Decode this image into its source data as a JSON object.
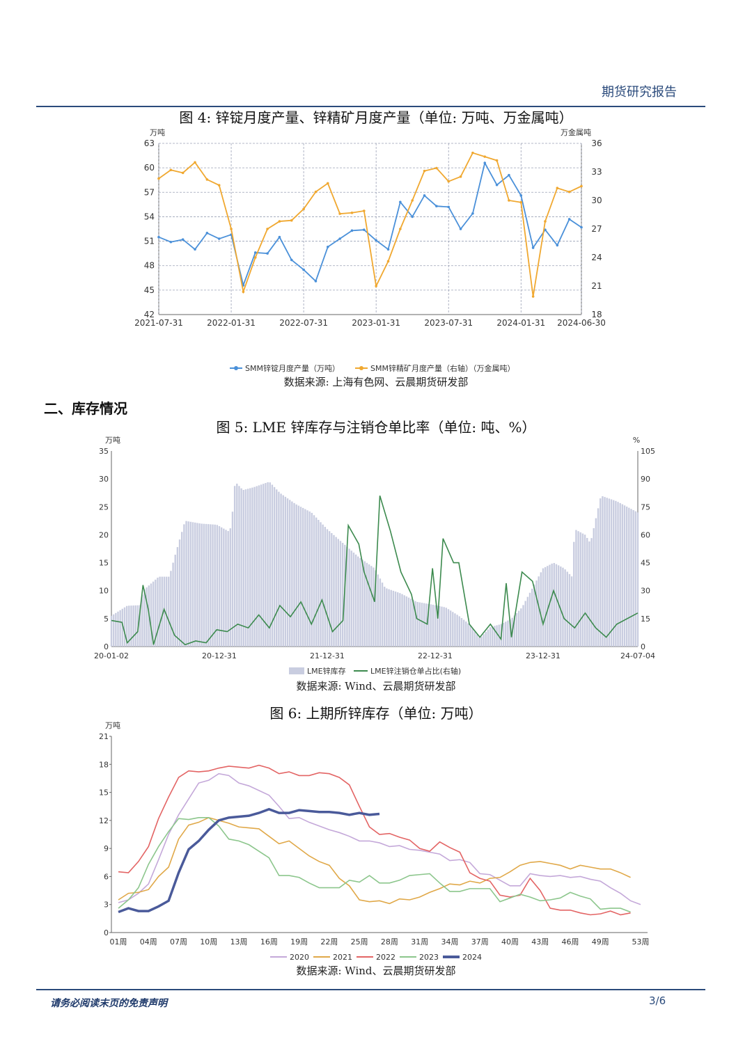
{
  "header": {
    "title": "期货研究报告"
  },
  "section": {
    "heading": "二、库存情况"
  },
  "footer": {
    "disclaimer": "请务必阅读末页的免责声明",
    "page": "3/6"
  },
  "figures": [
    {
      "title": "图 4:  锌锭月度产量、锌精矿月度产量（单位:  万吨、万金属吨）",
      "source": "数据来源:  上海有色网、云晨期货研发部"
    },
    {
      "title": "图 5:  LME 锌库存与注销仓单比率（单位:  吨、%）",
      "source": "数据来源:  Wind、云晨期货研发部"
    },
    {
      "title": "图 6:  上期所锌库存（单位:  万吨）",
      "source": "数据来源:  Wind、云晨期货研发部"
    }
  ],
  "chart_data": [
    {
      "type": "line",
      "left_unit": "万吨",
      "right_unit": "万金属吨",
      "x_ticks": [
        "2021-07-31",
        "2022-01-31",
        "2022-07-31",
        "2023-01-31",
        "2023-07-31",
        "2024-01-31",
        "2024-06-30"
      ],
      "x": [
        "2021-07",
        "2021-08",
        "2021-09",
        "2021-10",
        "2021-11",
        "2021-12",
        "2022-01",
        "2022-02",
        "2022-03",
        "2022-04",
        "2022-05",
        "2022-06",
        "2022-07",
        "2022-08",
        "2022-09",
        "2022-10",
        "2022-11",
        "2022-12",
        "2023-01",
        "2023-02",
        "2023-03",
        "2023-04",
        "2023-05",
        "2023-06",
        "2023-07",
        "2023-08",
        "2023-09",
        "2023-10",
        "2023-11",
        "2023-12",
        "2024-01",
        "2024-02",
        "2024-03",
        "2024-04",
        "2024-05",
        "2024-06"
      ],
      "ylim_left": [
        42,
        63
      ],
      "yticks_left": [
        42,
        45,
        48,
        51,
        54,
        57,
        60,
        63
      ],
      "ylim_right": [
        18,
        36
      ],
      "yticks_right": [
        18,
        21,
        24,
        27,
        30,
        33,
        36
      ],
      "grid": true,
      "legend": "bottom",
      "series": [
        {
          "name": "SMM锌锭月度产量（万吨）",
          "axis": "left",
          "color": "#4a90d9",
          "values": [
            51.5,
            50.9,
            51.2,
            50.0,
            52.0,
            51.3,
            51.8,
            45.6,
            49.6,
            49.5,
            51.5,
            48.7,
            47.5,
            46.1,
            50.3,
            51.3,
            52.3,
            52.4,
            51.1,
            50.0,
            55.8,
            54.0,
            56.6,
            55.3,
            55.2,
            52.5,
            54.4,
            60.6,
            57.9,
            59.1,
            56.6,
            50.2,
            52.4,
            50.5,
            53.7,
            52.7
          ]
        },
        {
          "name": "SMM锌精矿月度产量（右轴）（万金属吨）",
          "axis": "right",
          "color": "#f0a830",
          "values": [
            32.3,
            33.2,
            32.9,
            34.0,
            32.2,
            31.6,
            27.0,
            20.4,
            24.0,
            27.0,
            27.8,
            27.9,
            29.1,
            30.9,
            31.8,
            28.6,
            28.7,
            28.9,
            21.0,
            23.6,
            27.0,
            30.0,
            33.1,
            33.4,
            32.0,
            32.5,
            35.0,
            34.6,
            34.2,
            30.0,
            29.8,
            19.9,
            27.8,
            31.3,
            30.9,
            31.5
          ]
        }
      ]
    },
    {
      "type": "bar+line",
      "left_unit": "万吨",
      "right_unit": "%",
      "x_ticks": [
        "20-01-02",
        "20-12-31",
        "21-12-31",
        "22-12-31",
        "23-12-31",
        "24-07-04"
      ],
      "ylim_left": [
        0,
        35
      ],
      "yticks_left": [
        0,
        5,
        10,
        15,
        20,
        25,
        30,
        35
      ],
      "ylim_right": [
        0,
        105
      ],
      "yticks_right": [
        0,
        15,
        30,
        45,
        60,
        75,
        90,
        105
      ],
      "legend": "bottom",
      "series": [
        {
          "name": "LME锌库存",
          "axis": "left",
          "color": "#c9cde0",
          "points": [
            [
              0,
              5.5
            ],
            [
              0.03,
              7.3
            ],
            [
              0.055,
              7.4
            ],
            [
              0.06,
              10.0
            ],
            [
              0.09,
              12.5
            ],
            [
              0.11,
              12.5
            ],
            [
              0.12,
              16.0
            ],
            [
              0.14,
              22.5
            ],
            [
              0.17,
              22.0
            ],
            [
              0.2,
              21.8
            ],
            [
              0.225,
              20.5
            ],
            [
              0.23,
              24.0
            ],
            [
              0.235,
              29.5
            ],
            [
              0.25,
              28.0
            ],
            [
              0.27,
              28.5
            ],
            [
              0.3,
              29.5
            ],
            [
              0.32,
              27.5
            ],
            [
              0.35,
              25.5
            ],
            [
              0.38,
              24.0
            ],
            [
              0.41,
              21.0
            ],
            [
              0.44,
              18.5
            ],
            [
              0.47,
              16.0
            ],
            [
              0.5,
              14.0
            ],
            [
              0.52,
              10.5
            ],
            [
              0.55,
              9.5
            ],
            [
              0.58,
              8.0
            ],
            [
              0.61,
              7.5
            ],
            [
              0.635,
              7.0
            ],
            [
              0.66,
              5.5
            ],
            [
              0.68,
              4.0
            ],
            [
              0.7,
              1.5
            ],
            [
              0.72,
              3.5
            ],
            [
              0.74,
              4.0
            ],
            [
              0.76,
              5.0
            ],
            [
              0.78,
              7.0
            ],
            [
              0.8,
              10.5
            ],
            [
              0.82,
              14.0
            ],
            [
              0.84,
              15.0
            ],
            [
              0.86,
              14.0
            ],
            [
              0.875,
              12.5
            ],
            [
              0.88,
              21.0
            ],
            [
              0.9,
              20.0
            ],
            [
              0.91,
              18.5
            ],
            [
              0.93,
              27.0
            ],
            [
              0.96,
              26.0
            ],
            [
              1.0,
              24.0
            ]
          ]
        },
        {
          "name": "LME锌注销仓单占比(右轴)",
          "axis": "right",
          "color": "#3c8a4e",
          "points": [
            [
              0,
              14
            ],
            [
              0.02,
              13
            ],
            [
              0.03,
              2
            ],
            [
              0.05,
              8
            ],
            [
              0.06,
              33
            ],
            [
              0.07,
              20
            ],
            [
              0.08,
              1
            ],
            [
              0.1,
              20
            ],
            [
              0.12,
              6
            ],
            [
              0.14,
              1
            ],
            [
              0.16,
              3
            ],
            [
              0.18,
              2
            ],
            [
              0.2,
              9
            ],
            [
              0.22,
              8
            ],
            [
              0.24,
              12
            ],
            [
              0.26,
              10
            ],
            [
              0.28,
              17
            ],
            [
              0.3,
              10
            ],
            [
              0.32,
              22
            ],
            [
              0.34,
              16
            ],
            [
              0.36,
              24
            ],
            [
              0.38,
              12
            ],
            [
              0.4,
              25
            ],
            [
              0.42,
              8
            ],
            [
              0.44,
              14
            ],
            [
              0.45,
              65
            ],
            [
              0.47,
              55
            ],
            [
              0.48,
              40
            ],
            [
              0.5,
              24
            ],
            [
              0.51,
              81
            ],
            [
              0.53,
              62
            ],
            [
              0.55,
              40
            ],
            [
              0.57,
              28
            ],
            [
              0.58,
              15
            ],
            [
              0.6,
              12
            ],
            [
              0.61,
              42
            ],
            [
              0.62,
              15
            ],
            [
              0.63,
              58
            ],
            [
              0.65,
              45
            ],
            [
              0.66,
              45
            ],
            [
              0.68,
              12
            ],
            [
              0.7,
              5
            ],
            [
              0.72,
              12
            ],
            [
              0.74,
              4
            ],
            [
              0.75,
              34
            ],
            [
              0.76,
              5
            ],
            [
              0.78,
              40
            ],
            [
              0.8,
              35
            ],
            [
              0.82,
              12
            ],
            [
              0.84,
              30
            ],
            [
              0.86,
              15
            ],
            [
              0.88,
              10
            ],
            [
              0.9,
              18
            ],
            [
              0.92,
              10
            ],
            [
              0.94,
              5
            ],
            [
              0.96,
              12
            ],
            [
              1.0,
              18
            ]
          ]
        }
      ]
    },
    {
      "type": "line",
      "unit": "万吨",
      "x_ticks": [
        "01周",
        "04周",
        "07周",
        "10周",
        "13周",
        "16周",
        "19周",
        "22周",
        "25周",
        "28周",
        "31周",
        "34周",
        "37周",
        "40周",
        "43周",
        "46周",
        "49周",
        "53周"
      ],
      "ylim": [
        0,
        21
      ],
      "yticks": [
        0,
        3,
        6,
        9,
        12,
        15,
        18,
        21
      ],
      "legend": "bottom",
      "series": [
        {
          "name": "2020",
          "color": "#c4a8d9",
          "values": [
            3.2,
            3.5,
            4.2,
            5.2,
            7.8,
            10.5,
            12.6,
            14.3,
            16.0,
            16.3,
            17.0,
            16.8,
            16.0,
            15.7,
            15.2,
            14.7,
            13.5,
            12.2,
            12.3,
            11.8,
            11.4,
            11.0,
            10.7,
            10.3,
            9.8,
            9.8,
            9.6,
            9.2,
            9.3,
            8.9,
            8.8,
            8.6,
            8.4,
            7.7,
            7.8,
            7.5,
            6.3,
            6.2,
            5.6,
            5.0,
            5.0,
            6.3,
            6.1,
            6.0,
            6.1,
            5.9,
            6.0,
            5.7,
            5.5,
            4.8,
            4.2,
            3.4,
            3.0
          ]
        },
        {
          "name": "2021",
          "color": "#e0a848",
          "values": [
            3.5,
            4.2,
            4.3,
            4.6,
            6.0,
            7.0,
            10.0,
            11.5,
            11.8,
            12.3,
            12.0,
            11.7,
            11.3,
            11.2,
            11.1,
            10.3,
            9.5,
            9.8,
            9.0,
            8.2,
            7.6,
            7.2,
            5.8,
            5.0,
            3.5,
            3.3,
            3.4,
            3.1,
            3.6,
            3.5,
            3.8,
            4.3,
            4.7,
            5.2,
            5.1,
            5.5,
            5.3,
            5.8,
            5.9,
            6.5,
            7.2,
            7.5,
            7.6,
            7.4,
            7.2,
            6.8,
            7.2,
            7.0,
            6.8,
            6.8,
            6.4,
            5.9
          ]
        },
        {
          "name": "2022",
          "color": "#e36464",
          "values": [
            6.5,
            6.4,
            7.6,
            9.2,
            12.2,
            14.5,
            16.6,
            17.3,
            17.2,
            17.3,
            17.6,
            17.8,
            17.7,
            17.6,
            17.9,
            17.6,
            17.0,
            17.2,
            16.8,
            16.8,
            17.1,
            17.0,
            16.6,
            15.8,
            13.5,
            11.3,
            10.5,
            10.6,
            10.2,
            9.9,
            9.0,
            8.7,
            9.7,
            9.1,
            8.6,
            6.4,
            5.8,
            5.5,
            4.0,
            3.8,
            4.0,
            5.8,
            4.5,
            2.6,
            2.4,
            2.4,
            2.1,
            1.9,
            2.0,
            2.3,
            1.9,
            2.1
          ]
        },
        {
          "name": "2023",
          "color": "#8cc68c",
          "values": [
            2.6,
            3.5,
            4.8,
            7.3,
            9.2,
            10.8,
            12.2,
            12.1,
            12.3,
            12.3,
            11.4,
            10.0,
            9.8,
            9.4,
            8.7,
            8.0,
            6.1,
            6.1,
            5.9,
            5.3,
            4.8,
            4.8,
            4.8,
            5.6,
            5.4,
            6.1,
            5.3,
            5.3,
            5.6,
            6.1,
            6.2,
            6.3,
            5.3,
            4.4,
            4.4,
            4.7,
            4.7,
            4.7,
            3.3,
            3.7,
            4.1,
            3.8,
            3.4,
            3.5,
            3.7,
            4.3,
            3.9,
            3.6,
            2.5,
            2.6,
            2.6,
            2.2
          ]
        },
        {
          "name": "2024",
          "color": "#4a5a9a",
          "values": [
            2.2,
            2.6,
            2.3,
            2.3,
            2.8,
            3.4,
            6.4,
            8.9,
            9.8,
            11.0,
            12.0,
            12.3,
            12.4,
            12.5,
            12.8,
            13.2,
            12.8,
            12.8,
            13.1,
            13.0,
            12.9,
            12.9,
            12.8,
            12.6,
            12.8,
            12.6,
            12.7
          ]
        }
      ]
    }
  ]
}
